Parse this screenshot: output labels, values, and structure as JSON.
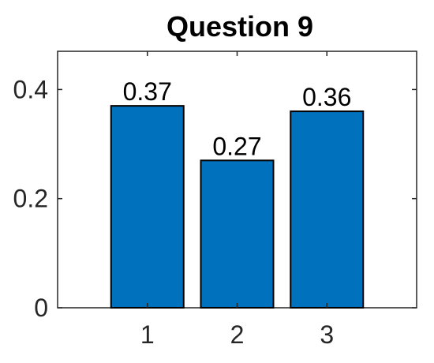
{
  "chart_data": {
    "type": "bar",
    "title": "Question 9",
    "xlabel": "",
    "ylabel": "",
    "categories": [
      "1",
      "2",
      "3"
    ],
    "values": [
      0.37,
      0.27,
      0.36
    ],
    "data_labels": [
      "0.37",
      "0.27",
      "0.36"
    ],
    "ylim": [
      0,
      0.47
    ],
    "yticks": [
      0,
      0.2,
      0.4
    ],
    "ytick_labels": [
      "0",
      "0.2",
      "0.4"
    ],
    "bar_color": "#0072BD",
    "bar_edge_color": "#000000",
    "grid": false,
    "legend": "none"
  }
}
